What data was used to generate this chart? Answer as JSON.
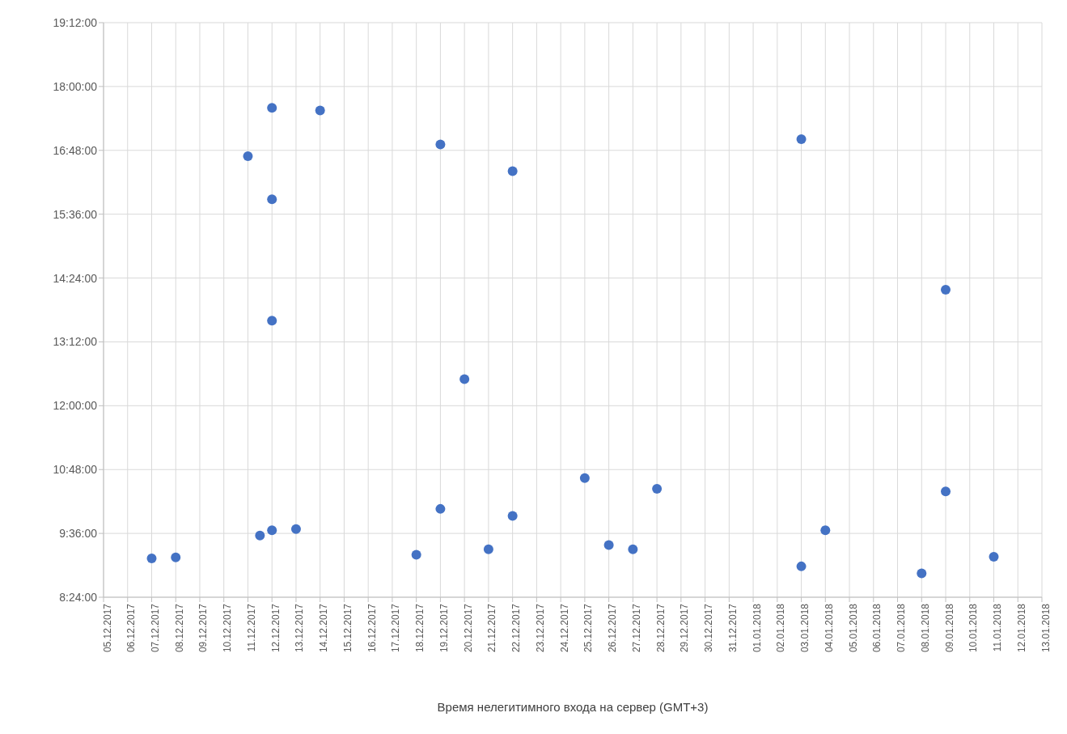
{
  "chart_data": {
    "type": "scatter",
    "xlabel": "Время нелегитимного входа на сервер (GMT+3)",
    "x": [
      "2017-12-07",
      "2017-12-08",
      "2017-12-11",
      "2017-12-11T12:00",
      "2017-12-12",
      "2017-12-12",
      "2017-12-12",
      "2017-12-12",
      "2017-12-13",
      "2017-12-14",
      "2017-12-18",
      "2017-12-19",
      "2017-12-19",
      "2017-12-20",
      "2017-12-21",
      "2017-12-22",
      "2017-12-22",
      "2017-12-25",
      "2017-12-26",
      "2017-12-27",
      "2017-12-28",
      "2018-01-03",
      "2018-01-03",
      "2018-01-04",
      "2018-01-08",
      "2018-01-09",
      "2018-01-09",
      "2018-01-11"
    ],
    "series": [
      {
        "color": "#4472c4",
        "values": [
          9.13,
          9.15,
          16.69,
          9.56,
          17.6,
          15.88,
          13.6,
          9.66,
          9.68,
          17.55,
          9.2,
          16.91,
          10.06,
          12.5,
          9.3,
          16.41,
          9.93,
          10.64,
          9.38,
          9.3,
          10.44,
          17.01,
          8.98,
          9.66,
          8.85,
          14.18,
          10.39,
          9.16
        ]
      }
    ],
    "marker": "circle",
    "grid": true,
    "legend": false,
    "xlim": [
      "2017-12-05",
      "2018-01-13"
    ],
    "xticks": [
      {
        "value": "2017-12-05",
        "label": "05.12.2017"
      },
      {
        "value": "2017-12-06",
        "label": "06.12.2017"
      },
      {
        "value": "2017-12-07",
        "label": "07.12.2017"
      },
      {
        "value": "2017-12-08",
        "label": "08.12.2017"
      },
      {
        "value": "2017-12-09",
        "label": "09.12.2017"
      },
      {
        "value": "2017-12-10",
        "label": "10.12.2017"
      },
      {
        "value": "2017-12-11",
        "label": "11.12.2017"
      },
      {
        "value": "2017-12-12",
        "label": "12.12.2017"
      },
      {
        "value": "2017-12-13",
        "label": "13.12.2017"
      },
      {
        "value": "2017-12-14",
        "label": "14.12.2017"
      },
      {
        "value": "2017-12-15",
        "label": "15.12.2017"
      },
      {
        "value": "2017-12-16",
        "label": "16.12.2017"
      },
      {
        "value": "2017-12-17",
        "label": "17.12.2017"
      },
      {
        "value": "2017-12-18",
        "label": "18.12.2017"
      },
      {
        "value": "2017-12-19",
        "label": "19.12.2017"
      },
      {
        "value": "2017-12-20",
        "label": "20.12.2017"
      },
      {
        "value": "2017-12-21",
        "label": "21.12.2017"
      },
      {
        "value": "2017-12-22",
        "label": "22.12.2017"
      },
      {
        "value": "2017-12-23",
        "label": "23.12.2017"
      },
      {
        "value": "2017-12-24",
        "label": "24.12.2017"
      },
      {
        "value": "2017-12-25",
        "label": "25.12.2017"
      },
      {
        "value": "2017-12-26",
        "label": "26.12.2017"
      },
      {
        "value": "2017-12-27",
        "label": "27.12.2017"
      },
      {
        "value": "2017-12-28",
        "label": "28.12.2017"
      },
      {
        "value": "2017-12-29",
        "label": "29.12.2017"
      },
      {
        "value": "2017-12-30",
        "label": "30.12.2017"
      },
      {
        "value": "2017-12-31",
        "label": "31.12.2017"
      },
      {
        "value": "2018-01-01",
        "label": "01.01.2018"
      },
      {
        "value": "2018-01-02",
        "label": "02.01.2018"
      },
      {
        "value": "2018-01-03",
        "label": "03.01.2018"
      },
      {
        "value": "2018-01-04",
        "label": "04.01.2018"
      },
      {
        "value": "2018-01-05",
        "label": "05.01.2018"
      },
      {
        "value": "2018-01-06",
        "label": "06.01.2018"
      },
      {
        "value": "2018-01-07",
        "label": "07.01.2018"
      },
      {
        "value": "2018-01-08",
        "label": "08.01.2018"
      },
      {
        "value": "2018-01-09",
        "label": "09.01.2018"
      },
      {
        "value": "2018-01-10",
        "label": "10.01.2018"
      },
      {
        "value": "2018-01-11",
        "label": "11.01.2018"
      },
      {
        "value": "2018-01-12",
        "label": "12.01.2018"
      },
      {
        "value": "2018-01-13",
        "label": "13.01.2018"
      }
    ],
    "ylim": [
      8.4,
      19.2
    ],
    "yticks": [
      {
        "value": 8.4,
        "label": "8:24:00"
      },
      {
        "value": 9.6,
        "label": "9:36:00"
      },
      {
        "value": 10.8,
        "label": "10:48:00"
      },
      {
        "value": 12,
        "label": "12:00:00"
      },
      {
        "value": 13.2,
        "label": "13:12:00"
      },
      {
        "value": 14.4,
        "label": "14:24:00"
      },
      {
        "value": 15.6,
        "label": "15:36:00"
      },
      {
        "value": 16.8,
        "label": "16:48:00"
      },
      {
        "value": 18,
        "label": "18:00:00"
      },
      {
        "value": 19.2,
        "label": "19:12:00"
      }
    ]
  }
}
